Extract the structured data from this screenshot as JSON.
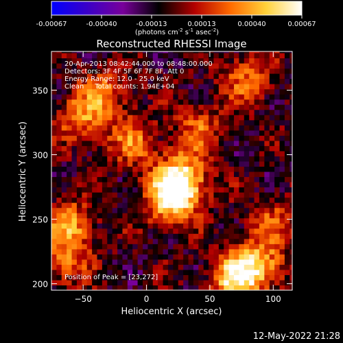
{
  "chart_data": {
    "type": "heatmap",
    "title": "Reconstructed RHESSI Image",
    "xlabel": "Heliocentric X (arcsec)",
    "ylabel": "Heliocentric Y (arcsec)",
    "xlim": [
      -75,
      115
    ],
    "ylim": [
      195,
      380
    ],
    "x_ticks": [
      -50,
      0,
      50,
      100
    ],
    "y_ticks": [
      200,
      250,
      300,
      350
    ],
    "colorbar": {
      "range": [
        -0.00067,
        0.00067
      ],
      "tick_labels": [
        "-0.00067",
        "-0.00040",
        "-0.00013",
        "0.00013",
        "0.00040",
        "0.00067"
      ],
      "units_prefix": "(photons cm",
      "units_exp1": "-2",
      "units_mid": " s",
      "units_exp2": "-1",
      "units_mid2": " asec",
      "units_exp3": "-2",
      "units_suffix": ")",
      "stops": [
        "#0000ff",
        "#3a00c8",
        "#78009a",
        "#000000",
        "#b30000",
        "#ff6a00",
        "#ffd23a",
        "#ffffff"
      ]
    },
    "annotations": [
      "20-Apr-2013 08:42:44.000 to 08:48:00.000",
      "Detectors: 3F 4F 5F 6F 7F 8F, Att 0",
      "Energy Range: 12.0 - 25.0 keV",
      "Clean     Total counts: 1.94E+04"
    ],
    "peak_label": "Position of Peak = [23,272]",
    "peak": [
      23,
      272
    ],
    "sources": [
      {
        "x": 28,
        "y": 280,
        "amp": 0.00067
      },
      {
        "x": 18,
        "y": 265,
        "amp": 0.00055
      },
      {
        "x": 70,
        "y": 205,
        "amp": 0.0006
      },
      {
        "x": 90,
        "y": 215,
        "amp": 0.00045
      },
      {
        "x": -60,
        "y": 245,
        "amp": 0.00045
      },
      {
        "x": -50,
        "y": 330,
        "amp": 0.0004
      },
      {
        "x": -10,
        "y": 310,
        "amp": 0.00035
      },
      {
        "x": 80,
        "y": 360,
        "amp": 0.00035
      },
      {
        "x": 40,
        "y": 320,
        "amp": 0.0003
      },
      {
        "x": -30,
        "y": 350,
        "amp": 0.0003
      },
      {
        "x": -65,
        "y": 215,
        "amp": 0.0003
      },
      {
        "x": 100,
        "y": 250,
        "amp": 0.00025
      }
    ]
  },
  "footer": {
    "timestamp": "12-May-2022 21:28"
  }
}
